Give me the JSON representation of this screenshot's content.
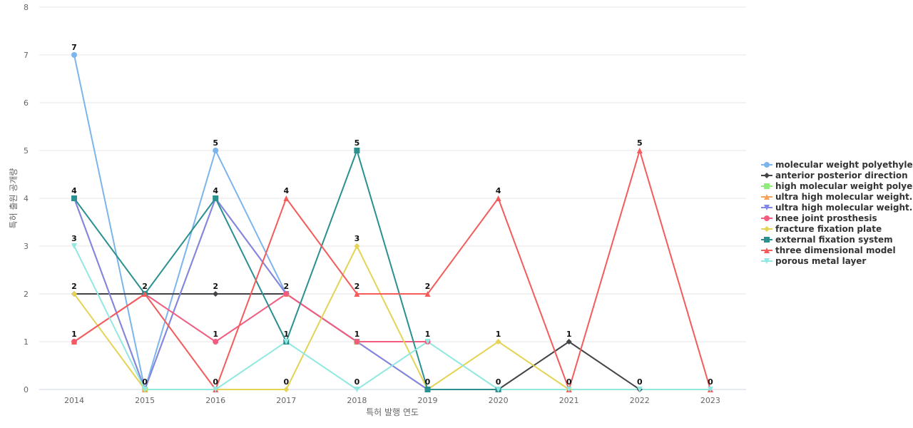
{
  "chart_data": {
    "type": "line",
    "x": [
      "2014",
      "2015",
      "2016",
      "2017",
      "2018",
      "2019",
      "2020",
      "2021",
      "2022",
      "2023"
    ],
    "xlabel": "특허 발행 연도",
    "ylabel": "특허 출원 공개량",
    "ylim": [
      0,
      8
    ],
    "yticks": [
      0,
      1,
      2,
      3,
      4,
      5,
      6,
      7,
      8
    ],
    "grid": true,
    "legend_position": "right",
    "series": [
      {
        "name": "molecular weight polyethylene",
        "color": "#7cb5ec",
        "marker": "circle",
        "values": [
          7,
          0,
          5,
          2,
          null,
          null,
          null,
          null,
          null,
          null
        ]
      },
      {
        "name": "anterior posterior direction",
        "color": "#434348",
        "marker": "diamond",
        "values": [
          2,
          2,
          2,
          2,
          null,
          null,
          0,
          1,
          0,
          null
        ]
      },
      {
        "name": "high molecular weight polye...",
        "color": "#90ed7d",
        "marker": "square",
        "values": [
          4,
          0,
          4,
          2,
          1,
          0,
          null,
          null,
          null,
          null
        ]
      },
      {
        "name": "ultra high molecular weight...",
        "color": "#f7a35c",
        "marker": "triangle",
        "values": [
          4,
          0,
          4,
          2,
          1,
          0,
          null,
          null,
          null,
          null
        ]
      },
      {
        "name": "ultra high molecular weight...",
        "color": "#8085e9",
        "marker": "triangle-down",
        "values": [
          4,
          0,
          4,
          2,
          1,
          0,
          null,
          null,
          null,
          null
        ]
      },
      {
        "name": "knee joint prosthesis",
        "color": "#f15c80",
        "marker": "circle",
        "values": [
          1,
          2,
          1,
          2,
          1,
          1,
          null,
          null,
          null,
          null
        ]
      },
      {
        "name": "fracture fixation plate",
        "color": "#e4d354",
        "marker": "diamond",
        "values": [
          2,
          0,
          0,
          0,
          3,
          0,
          1,
          0,
          null,
          null
        ]
      },
      {
        "name": "external fixation system",
        "color": "#2b908f",
        "marker": "square",
        "values": [
          4,
          2,
          4,
          1,
          5,
          0,
          0,
          null,
          null,
          null
        ]
      },
      {
        "name": "three dimensional model",
        "color": "#f45b5b",
        "marker": "triangle",
        "values": [
          1,
          2,
          0,
          4,
          2,
          2,
          4,
          0,
          5,
          0
        ]
      },
      {
        "name": "porous metal layer",
        "color": "#91e8e1",
        "marker": "triangle-down",
        "values": [
          3,
          0,
          0,
          1,
          0,
          1,
          0,
          0,
          0,
          0
        ]
      }
    ],
    "data_labels": [
      {
        "x": "2014",
        "y": 7,
        "text": "7"
      },
      {
        "x": "2014",
        "y": 4,
        "text": "4"
      },
      {
        "x": "2014",
        "y": 3,
        "text": "3"
      },
      {
        "x": "2014",
        "y": 2,
        "text": "2"
      },
      {
        "x": "2014",
        "y": 1,
        "text": "1"
      },
      {
        "x": "2015",
        "y": 2,
        "text": "2"
      },
      {
        "x": "2015",
        "y": 0,
        "text": "0"
      },
      {
        "x": "2016",
        "y": 5,
        "text": "5"
      },
      {
        "x": "2016",
        "y": 4,
        "text": "4"
      },
      {
        "x": "2016",
        "y": 2,
        "text": "2"
      },
      {
        "x": "2016",
        "y": 1,
        "text": "1"
      },
      {
        "x": "2016",
        "y": 0,
        "text": "0"
      },
      {
        "x": "2017",
        "y": 4,
        "text": "4"
      },
      {
        "x": "2017",
        "y": 2,
        "text": "2"
      },
      {
        "x": "2017",
        "y": 1,
        "text": "1"
      },
      {
        "x": "2017",
        "y": 0,
        "text": "0"
      },
      {
        "x": "2018",
        "y": 5,
        "text": "5"
      },
      {
        "x": "2018",
        "y": 3,
        "text": "3"
      },
      {
        "x": "2018",
        "y": 2,
        "text": "2"
      },
      {
        "x": "2018",
        "y": 1,
        "text": "1"
      },
      {
        "x": "2018",
        "y": 0,
        "text": "0"
      },
      {
        "x": "2019",
        "y": 2,
        "text": "2"
      },
      {
        "x": "2019",
        "y": 1,
        "text": "1"
      },
      {
        "x": "2019",
        "y": 0,
        "text": "0"
      },
      {
        "x": "2020",
        "y": 4,
        "text": "4"
      },
      {
        "x": "2020",
        "y": 1,
        "text": "1"
      },
      {
        "x": "2020",
        "y": 0,
        "text": "0"
      },
      {
        "x": "2021",
        "y": 1,
        "text": "1"
      },
      {
        "x": "2021",
        "y": 0,
        "text": "0"
      },
      {
        "x": "2022",
        "y": 5,
        "text": "5"
      },
      {
        "x": "2022",
        "y": 0,
        "text": "0"
      },
      {
        "x": "2023",
        "y": 0,
        "text": "0"
      }
    ]
  }
}
